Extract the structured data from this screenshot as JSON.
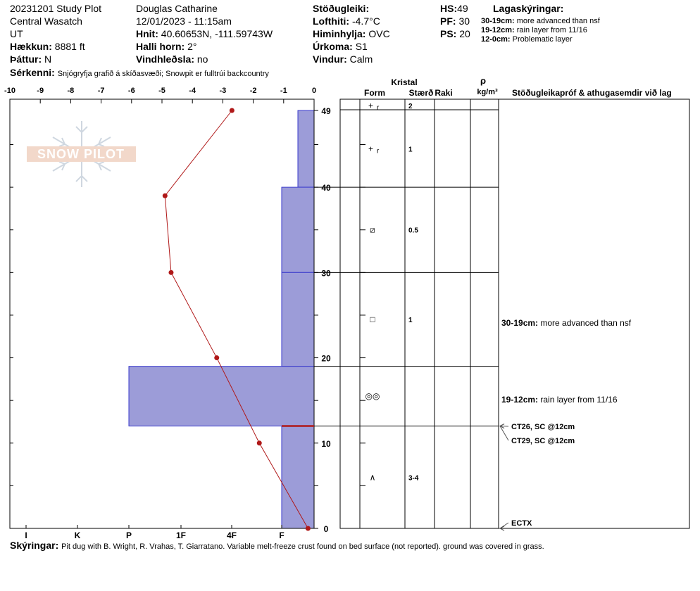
{
  "header": {
    "left": {
      "line1": "20231201 Study Plot",
      "line2": "Central Wasatch",
      "line3": "UT",
      "elevation_label": "Hækkun:",
      "elevation_value": "8881 ft",
      "aspect_label": "Þáttur:",
      "aspect_value": "N",
      "notes_label": "Sérkenni:",
      "notes_value": "Snjógryfja grafið á skíðasvæði;  Snowpit er fulltrúi backcountry"
    },
    "middle": {
      "observer": "Douglas  Catharine",
      "datetime": "12/01/2023 - 11:15am",
      "coords_label": "Hnit:",
      "coords_value": "40.60653N, -111.59743W",
      "slope_label": "Halli horn:",
      "slope_value": "2°",
      "wind_loading_label": "Vindhleðsla:",
      "wind_loading_value": "no"
    },
    "weather": {
      "stability_label": "Stöðugleiki:",
      "air_temp_label": "Lofthiti:",
      "air_temp_value": "-4.7°C",
      "sky_label": "Himinhylja:",
      "sky_value": "OVC",
      "precip_label": "Úrkoma:",
      "precip_value": "S1",
      "wind_label": "Vindur:",
      "wind_value": "Calm"
    },
    "depths": {
      "hs_label": "HS:",
      "hs_value": "49",
      "pf_label": "PF:",
      "pf_value": "30",
      "ps_label": "PS:",
      "ps_value": "20"
    },
    "layer_notes_title": "Lagaskýringar:",
    "layer_notes": [
      {
        "range": "30-19cm:",
        "text": "more advanced than nsf"
      },
      {
        "range": "19-12cm:",
        "text": "rain layer from 11/16"
      },
      {
        "range": "12-0cm:",
        "text": "Problematic layer"
      }
    ]
  },
  "logo": {
    "text": "SNOW PILOT"
  },
  "columns": {
    "crystal": "Kristal",
    "form": "Form",
    "size": "Stærð",
    "moisture": "Raki",
    "density_symbol": "ρ",
    "density_unit": "kg/m³",
    "tests": "Stöðugleikapróf & athugasemdir við lag"
  },
  "chart_data": {
    "type": "area",
    "x_axis_top": {
      "ticks": [
        "-10",
        "-9",
        "-8",
        "-7",
        "-6",
        "-5",
        "-4",
        "-3",
        "-2",
        "-1",
        "0"
      ],
      "range": [
        -10,
        0
      ]
    },
    "x_axis_bottom": {
      "ticks": [
        "I",
        "K",
        "P",
        "1F",
        "4F",
        "F"
      ]
    },
    "y_axis": {
      "ticks": [
        "0",
        "10",
        "20",
        "30",
        "40",
        "49"
      ],
      "range": [
        0,
        49
      ]
    },
    "temperature_profile": [
      {
        "depth": 49,
        "temp": -2.7
      },
      {
        "depth": 39,
        "temp": -4.9
      },
      {
        "depth": 30,
        "temp": -4.7
      },
      {
        "depth": 20,
        "temp": -3.2
      },
      {
        "depth": 10,
        "temp": -1.8
      },
      {
        "depth": 0,
        "temp": -0.2
      }
    ],
    "hardness_layers": [
      {
        "top": 49,
        "bottom": 40,
        "hardness": "F-"
      },
      {
        "top": 40,
        "bottom": 30,
        "hardness": "F"
      },
      {
        "top": 30,
        "bottom": 19,
        "hardness": "F"
      },
      {
        "top": 19,
        "bottom": 12,
        "hardness": "P"
      },
      {
        "top": 12,
        "bottom": 0,
        "hardness": "F"
      }
    ],
    "layer_boundaries": [
      49,
      40,
      30,
      19,
      12,
      0
    ],
    "grain_rows": [
      {
        "depth": 49,
        "form": "+ r",
        "size": "2"
      },
      {
        "depth": 44.5,
        "form": "+ r",
        "size": "1"
      },
      {
        "depth": 35,
        "form": "⧄",
        "size": "0.5"
      },
      {
        "depth": 24.5,
        "form": "□",
        "size": "1"
      },
      {
        "depth": 15.5,
        "form": "◎◎",
        "size": ""
      },
      {
        "depth": 6,
        "form": "∧",
        "size": "3-4"
      }
    ],
    "comments": [
      {
        "depth": 24.1,
        "range": "30-19cm:",
        "text": "more advanced than nsf"
      },
      {
        "depth": 15.1,
        "range": "19-12cm:",
        "text": "rain layer from 11/16"
      }
    ],
    "tests": [
      {
        "depth": 12,
        "text": "CT26, SC @12cm"
      },
      {
        "depth": 12,
        "text": "CT29, SC @12cm"
      },
      {
        "depth": 0,
        "text": "ECTX"
      }
    ]
  },
  "footer": {
    "label": "Skýringar:",
    "text": "Pit dug with B. Wright, R. Vrahas, T. Giarratano.  Variable melt-freeze crust found on bed surface (not reported).  ground was covered in grass."
  }
}
